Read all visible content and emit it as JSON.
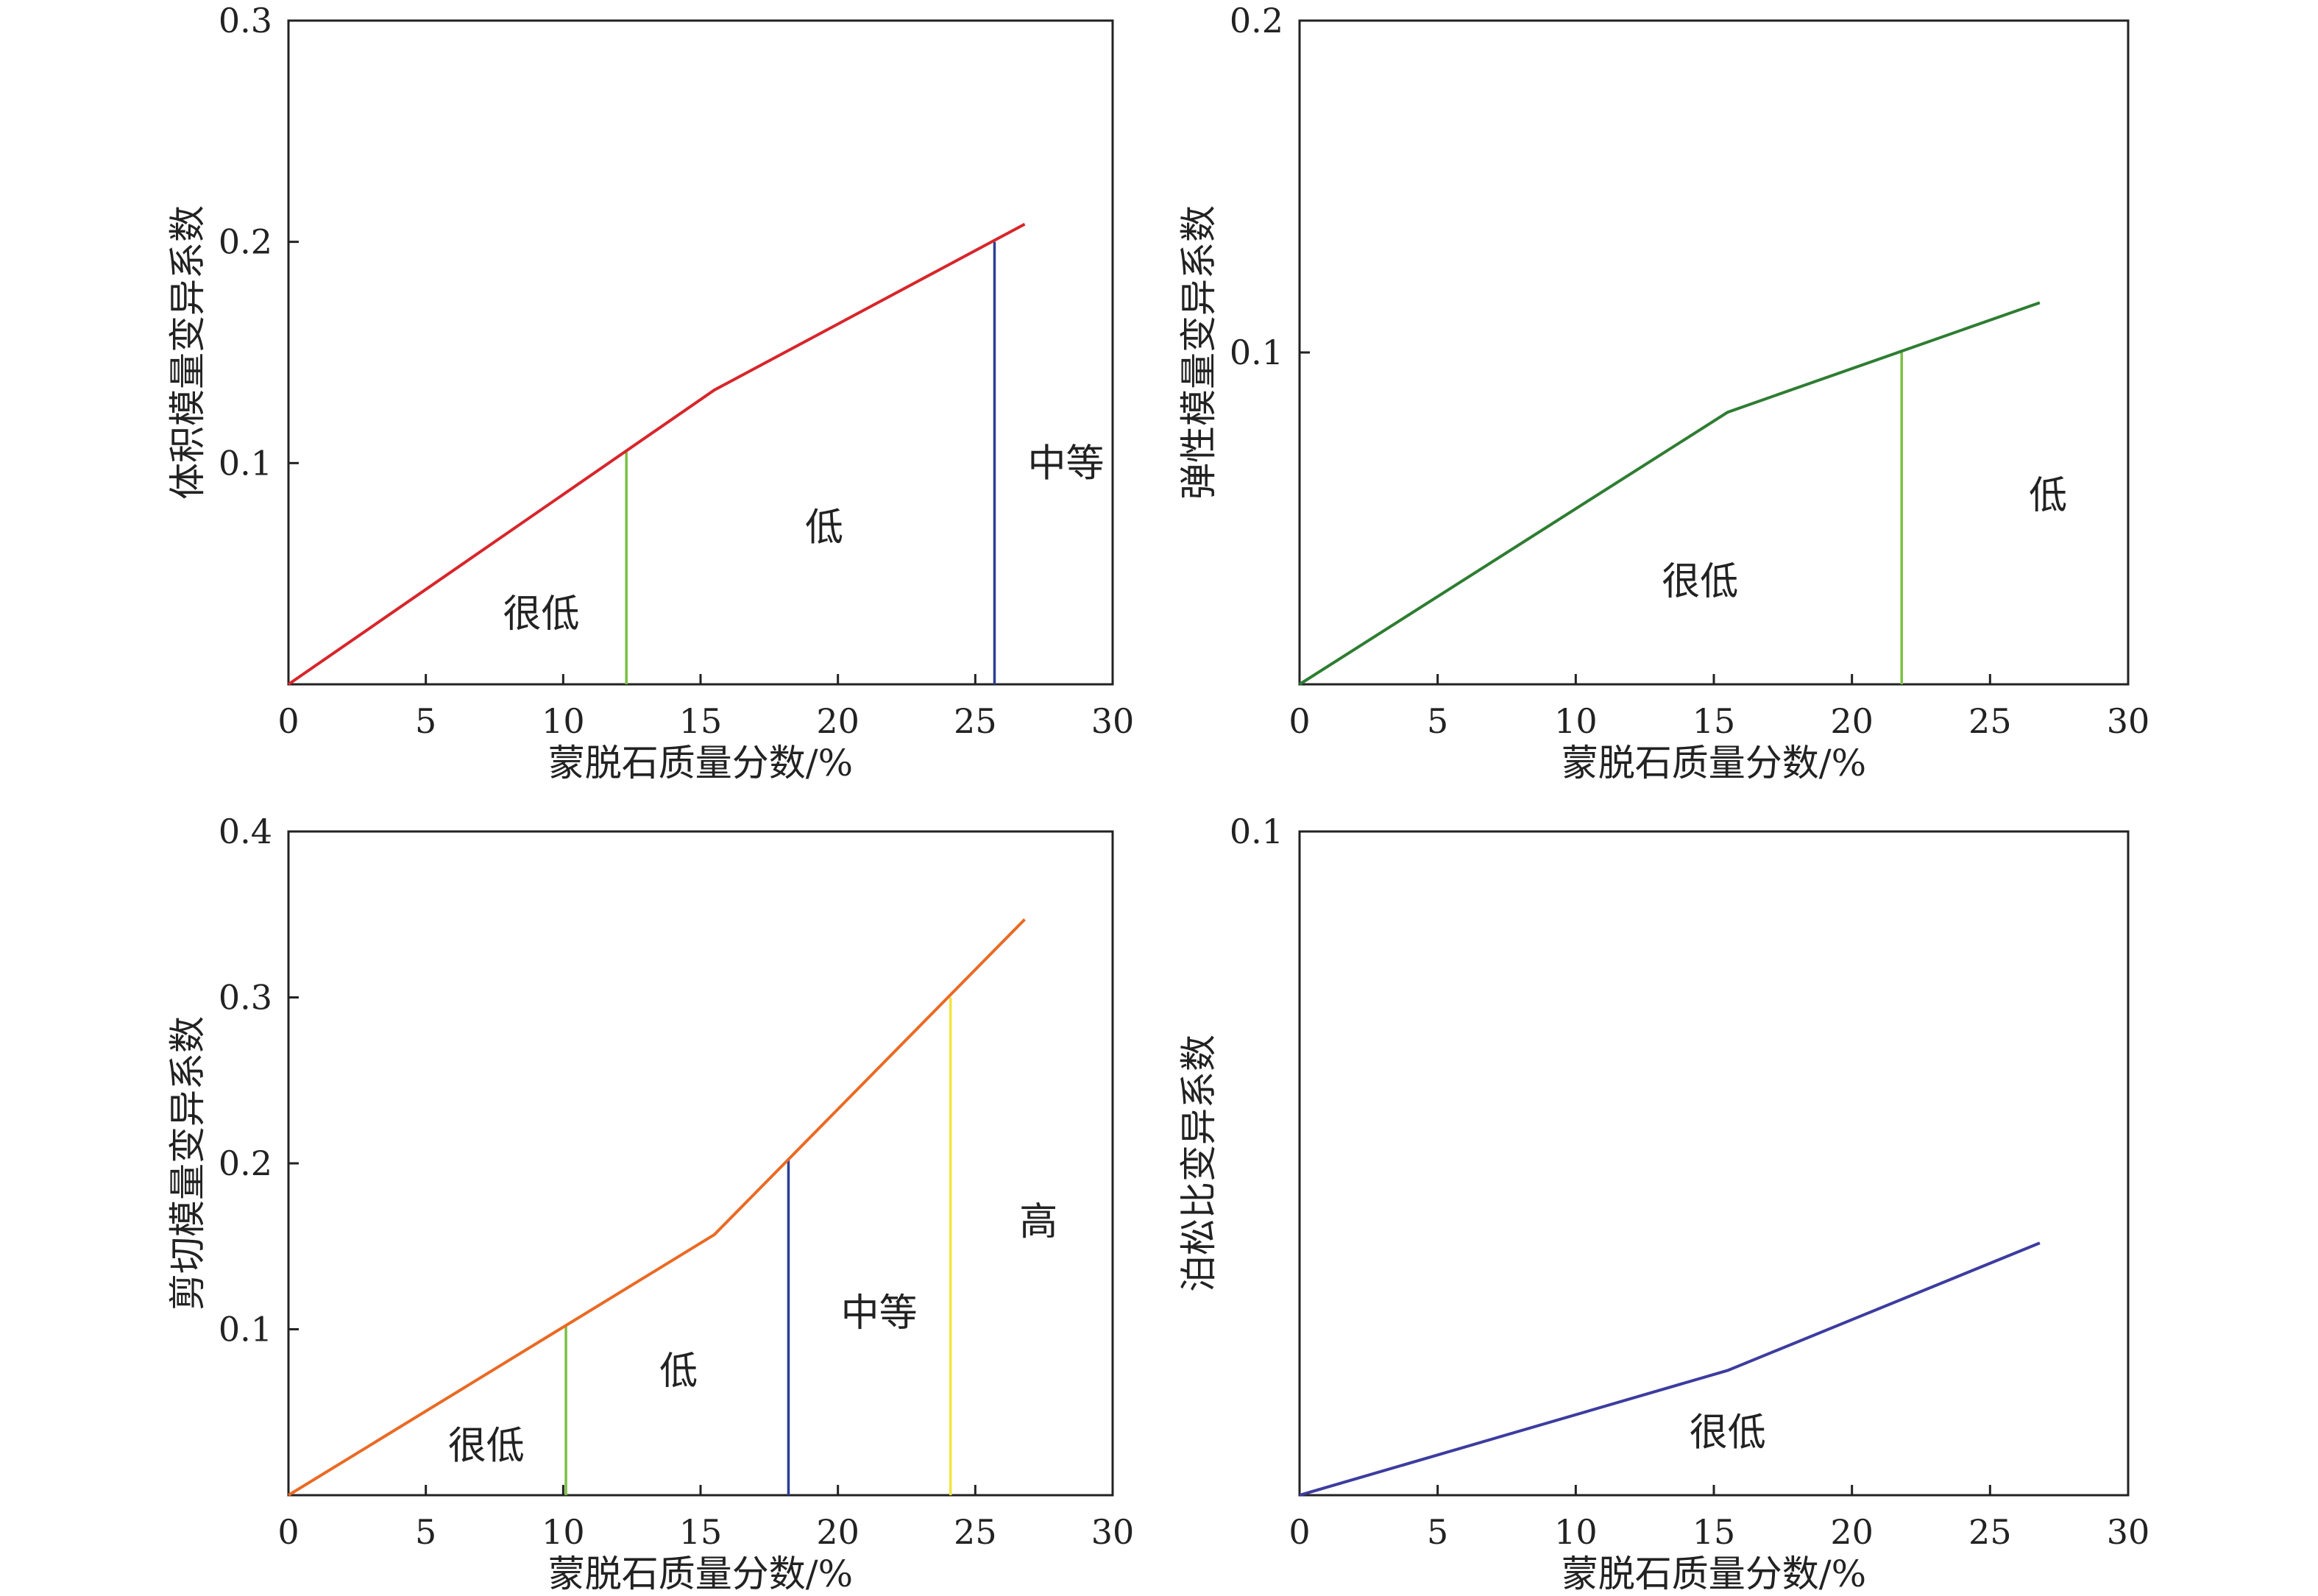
{
  "chart_data": [
    {
      "type": "line",
      "xlabel": "蒙脱石质量分数/%",
      "ylabel": "体积模量变异系数",
      "xlim": [
        0,
        30
      ],
      "ylim": [
        0,
        0.3
      ],
      "x_ticks": [
        "0",
        "5",
        "10",
        "15",
        "20",
        "25",
        "30"
      ],
      "y_ticks": [
        "0.1",
        "0.2",
        "0.3"
      ],
      "line_color": "#d7262b",
      "series": [
        {
          "x": [
            0,
            15.5,
            26.8
          ],
          "y": [
            0,
            0.133,
            0.208
          ]
        }
      ],
      "thresholds": [
        {
          "x": 12.3,
          "y": 0.105,
          "color": "#7bc043"
        },
        {
          "x": 25.7,
          "y": 0.2,
          "color": "#2b3e98"
        }
      ],
      "regions": [
        {
          "label": "很低",
          "x": 9.2,
          "y": 0.032
        },
        {
          "label": "低",
          "x": 19.5,
          "y": 0.071
        },
        {
          "label": "中等",
          "x": 28.3,
          "y": 0.1
        }
      ]
    },
    {
      "type": "line",
      "xlabel": "蒙脱石质量分数/%",
      "ylabel": "弹性模量变异系数",
      "xlim": [
        0,
        30
      ],
      "ylim": [
        0,
        0.2
      ],
      "x_ticks": [
        "0",
        "5",
        "10",
        "15",
        "20",
        "25",
        "30"
      ],
      "y_ticks": [
        "0.1",
        "0.2"
      ],
      "line_color": "#2e7d32",
      "series": [
        {
          "x": [
            0,
            15.5,
            26.8
          ],
          "y": [
            0,
            0.082,
            0.115
          ]
        }
      ],
      "thresholds": [
        {
          "x": 21.8,
          "y": 0.1,
          "color": "#7bc043"
        }
      ],
      "regions": [
        {
          "label": "很低",
          "x": 14.5,
          "y": 0.031
        },
        {
          "label": "低",
          "x": 27.1,
          "y": 0.057
        }
      ]
    },
    {
      "type": "line",
      "xlabel": "蒙脱石质量分数/%",
      "ylabel": "剪切模量变异系数",
      "xlim": [
        0,
        30
      ],
      "ylim": [
        0,
        0.4
      ],
      "x_ticks": [
        "0",
        "5",
        "10",
        "15",
        "20",
        "25",
        "30"
      ],
      "y_ticks": [
        "0.1",
        "0.2",
        "0.3",
        "0.4"
      ],
      "line_color": "#ea6a24",
      "series": [
        {
          "x": [
            0,
            15.5,
            26.8
          ],
          "y": [
            0,
            0.157,
            0.347
          ]
        }
      ],
      "thresholds": [
        {
          "x": 10.1,
          "y": 0.102,
          "color": "#7bc043"
        },
        {
          "x": 18.2,
          "y": 0.202,
          "color": "#2b3e98"
        },
        {
          "x": 24.1,
          "y": 0.3,
          "color": "#f2e43c"
        }
      ],
      "regions": [
        {
          "label": "很低",
          "x": 7.2,
          "y": 0.03
        },
        {
          "label": "低",
          "x": 14.2,
          "y": 0.075
        },
        {
          "label": "中等",
          "x": 21.5,
          "y": 0.11
        },
        {
          "label": "高",
          "x": 27.3,
          "y": 0.165
        }
      ]
    },
    {
      "type": "line",
      "xlabel": "蒙脱石质量分数/%",
      "ylabel": "泊松比变异系数",
      "xlim": [
        0,
        30
      ],
      "ylim": [
        0,
        0.1
      ],
      "x_ticks": [
        "0",
        "5",
        "10",
        "15",
        "20",
        "25",
        "30"
      ],
      "y_ticks": [
        "0.1"
      ],
      "line_color": "#3c3ca0",
      "series": [
        {
          "x": [
            0,
            15.5,
            26.8
          ],
          "y": [
            0,
            0.0188,
            0.038
          ]
        }
      ],
      "thresholds": [],
      "regions": [
        {
          "label": "很低",
          "x": 15.5,
          "y": 0.0095
        }
      ]
    }
  ]
}
